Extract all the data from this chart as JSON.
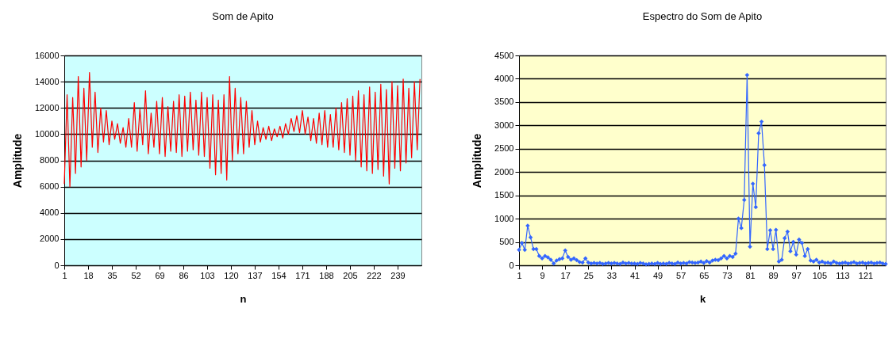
{
  "chart_data": [
    {
      "type": "line",
      "title": "Som de Apito",
      "xlabel": "n",
      "ylabel": "Amplitude",
      "grid": "y",
      "xlim": [
        1,
        256
      ],
      "xticks": [
        1,
        18,
        35,
        52,
        69,
        86,
        103,
        120,
        137,
        154,
        171,
        188,
        205,
        222,
        239
      ],
      "ylim": [
        0,
        16000
      ],
      "yticks": [
        0,
        2000,
        4000,
        6000,
        8000,
        10000,
        12000,
        14000,
        16000
      ],
      "x": [
        1,
        3,
        5,
        7,
        9,
        11,
        13,
        15,
        17,
        19,
        21,
        23,
        25,
        27,
        29,
        31,
        33,
        35,
        37,
        39,
        41,
        43,
        45,
        47,
        49,
        51,
        53,
        55,
        57,
        59,
        61,
        63,
        65,
        67,
        69,
        71,
        73,
        75,
        77,
        79,
        81,
        83,
        85,
        87,
        89,
        91,
        93,
        95,
        97,
        99,
        101,
        103,
        105,
        107,
        109,
        111,
        113,
        115,
        117,
        119,
        121,
        123,
        125,
        127,
        129,
        131,
        133,
        135,
        137,
        139,
        141,
        143,
        145,
        147,
        149,
        151,
        153,
        155,
        157,
        159,
        161,
        163,
        165,
        167,
        169,
        171,
        173,
        175,
        177,
        179,
        181,
        183,
        185,
        187,
        189,
        191,
        193,
        195,
        197,
        199,
        201,
        203,
        205,
        207,
        209,
        211,
        213,
        215,
        217,
        219,
        221,
        223,
        225,
        227,
        229,
        231,
        233,
        235,
        237,
        239,
        241,
        243,
        245,
        247,
        249,
        251,
        253,
        255
      ],
      "series": [
        {
          "color": "#ff0000",
          "values": [
            6200,
            13000,
            6000,
            12800,
            7000,
            14400,
            7500,
            13500,
            8000,
            14700,
            9000,
            13200,
            8600,
            12000,
            9400,
            11800,
            9200,
            11000,
            9600,
            10800,
            9300,
            10500,
            9000,
            11200,
            9000,
            12400,
            8700,
            11900,
            9200,
            13300,
            8500,
            11600,
            9000,
            12500,
            8500,
            12800,
            8300,
            12100,
            8700,
            12500,
            8600,
            13000,
            8300,
            12900,
            8700,
            13200,
            8800,
            12600,
            8400,
            13200,
            8300,
            12800,
            7400,
            13000,
            6900,
            12600,
            7000,
            13000,
            6500,
            14400,
            8000,
            13500,
            8500,
            12800,
            8500,
            12500,
            9000,
            11800,
            9200,
            11000,
            9400,
            10500,
            9600,
            10600,
            9500,
            10400,
            9800,
            10600,
            9700,
            10800,
            10000,
            11200,
            10200,
            11400,
            10100,
            11800,
            10000,
            11300,
            9500,
            11200,
            9300,
            11600,
            9200,
            11800,
            9000,
            11500,
            9000,
            12000,
            8800,
            12400,
            8600,
            12700,
            8400,
            12900,
            8000,
            13300,
            7500,
            13000,
            7200,
            13600,
            7000,
            13200,
            7300,
            13800,
            6800,
            13400,
            6200,
            14000,
            7400,
            13700,
            7200,
            14200,
            7800,
            13500,
            8200,
            14000,
            8800,
            14200
          ]
        }
      ]
    },
    {
      "type": "line",
      "title": "Espectro do Som de Apito",
      "xlabel": "k",
      "ylabel": "Amplitude",
      "grid": "y",
      "marker": "diamond",
      "xlim": [
        1,
        128
      ],
      "xticks": [
        1,
        9,
        17,
        25,
        33,
        41,
        49,
        57,
        65,
        73,
        81,
        89,
        97,
        105,
        113,
        121
      ],
      "ylim": [
        0,
        4500
      ],
      "yticks": [
        0,
        500,
        1000,
        1500,
        2000,
        2500,
        3000,
        3500,
        4000,
        4500
      ],
      "x": [
        1,
        2,
        3,
        4,
        5,
        6,
        7,
        8,
        9,
        10,
        11,
        12,
        13,
        14,
        15,
        16,
        17,
        18,
        19,
        20,
        21,
        22,
        23,
        24,
        25,
        26,
        27,
        28,
        29,
        30,
        31,
        32,
        33,
        34,
        35,
        36,
        37,
        38,
        39,
        40,
        41,
        42,
        43,
        44,
        45,
        46,
        47,
        48,
        49,
        50,
        51,
        52,
        53,
        54,
        55,
        56,
        57,
        58,
        59,
        60,
        61,
        62,
        63,
        64,
        65,
        66,
        67,
        68,
        69,
        70,
        71,
        72,
        73,
        74,
        75,
        76,
        77,
        78,
        79,
        80,
        81,
        82,
        83,
        84,
        85,
        86,
        87,
        88,
        89,
        90,
        91,
        92,
        93,
        94,
        95,
        96,
        97,
        98,
        99,
        100,
        101,
        102,
        103,
        104,
        105,
        106,
        107,
        108,
        109,
        110,
        111,
        112,
        113,
        114,
        115,
        116,
        117,
        118,
        119,
        120,
        121,
        122,
        123,
        124,
        125,
        126,
        127,
        128
      ],
      "series": [
        {
          "color": "#3366ff",
          "values": [
            330,
            480,
            330,
            850,
            600,
            350,
            350,
            200,
            150,
            200,
            170,
            120,
            40,
            100,
            130,
            150,
            320,
            180,
            120,
            150,
            110,
            70,
            60,
            150,
            60,
            40,
            50,
            40,
            50,
            30,
            40,
            50,
            40,
            50,
            40,
            30,
            60,
            40,
            50,
            40,
            40,
            30,
            50,
            40,
            20,
            30,
            40,
            30,
            50,
            30,
            40,
            30,
            50,
            40,
            30,
            60,
            40,
            50,
            40,
            70,
            60,
            50,
            60,
            80,
            50,
            90,
            60,
            100,
            120,
            110,
            150,
            200,
            150,
            200,
            180,
            250,
            1000,
            800,
            1400,
            4080,
            400,
            1750,
            1250,
            2830,
            3080,
            2150,
            350,
            750,
            350,
            760,
            80,
            120,
            580,
            720,
            300,
            500,
            230,
            550,
            480,
            200,
            350,
            100,
            80,
            120,
            60,
            80,
            50,
            60,
            40,
            80,
            50,
            40,
            50,
            60,
            40,
            50,
            70,
            40,
            50,
            60,
            40,
            50,
            60,
            40,
            50,
            60,
            40,
            30
          ]
        }
      ]
    }
  ]
}
